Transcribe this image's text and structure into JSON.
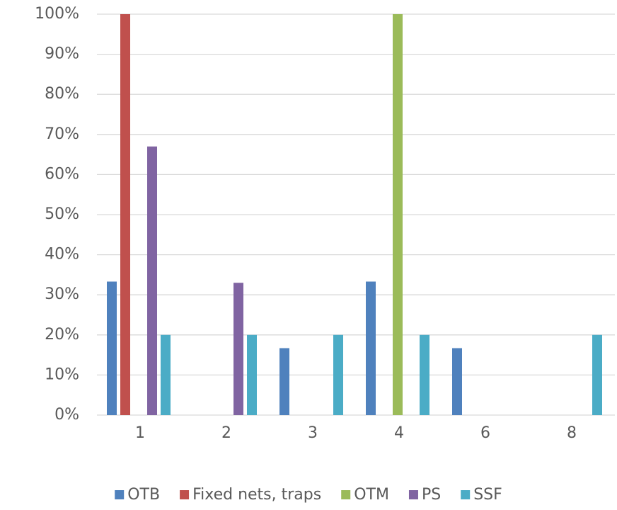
{
  "chart_data": {
    "type": "bar",
    "categories": [
      "1",
      "2",
      "3",
      "4",
      "6",
      "8"
    ],
    "series": [
      {
        "name": "OTB",
        "color": "#4f81bd",
        "values": [
          33.3,
          0,
          16.7,
          33.3,
          16.7,
          0
        ]
      },
      {
        "name": "Fixed nets, traps",
        "color": "#c0504d",
        "values": [
          100,
          0,
          0,
          0,
          0,
          0
        ]
      },
      {
        "name": "OTM",
        "color": "#9bbb59",
        "values": [
          0,
          0,
          0,
          100,
          0,
          0
        ]
      },
      {
        "name": "PS",
        "color": "#8064a2",
        "values": [
          67,
          33,
          0,
          0,
          0,
          0
        ]
      },
      {
        "name": "SSF",
        "color": "#4bacc6",
        "values": [
          20,
          20,
          20,
          20,
          0,
          20
        ]
      }
    ],
    "ylim": [
      0,
      100
    ],
    "yticks": [
      {
        "value": 0,
        "label": "0%"
      },
      {
        "value": 10,
        "label": "10%"
      },
      {
        "value": 20,
        "label": "20%"
      },
      {
        "value": 30,
        "label": "30%"
      },
      {
        "value": 40,
        "label": "40%"
      },
      {
        "value": 50,
        "label": "50%"
      },
      {
        "value": 60,
        "label": "60%"
      },
      {
        "value": 70,
        "label": "70%"
      },
      {
        "value": 80,
        "label": "80%"
      },
      {
        "value": 90,
        "label": "90%"
      },
      {
        "value": 100,
        "label": "100%"
      }
    ],
    "grid": true,
    "legend": "bottom"
  }
}
